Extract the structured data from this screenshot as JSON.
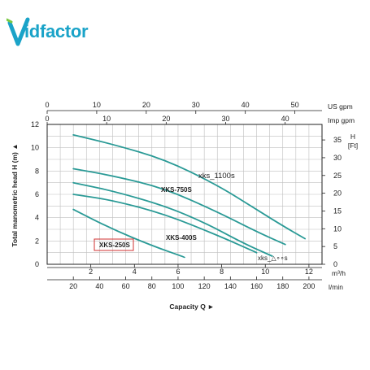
{
  "logo": {
    "text": "Vidfactor",
    "letters": "idfactor",
    "color": "#1aa3c8"
  },
  "chart_data": {
    "type": "line",
    "ylabel": "Total manometric head H (m) ▲",
    "xlabel": "Capacity Q ►",
    "ylim": [
      0,
      12
    ],
    "xlim_lmin": [
      0,
      210
    ],
    "grid": true,
    "curve_color": "#2a9a96",
    "axes": {
      "left_head_m": [
        "0",
        "2",
        "4",
        "6",
        "8",
        "10",
        "12"
      ],
      "right_head_ft": {
        "title": "H",
        "unit": "[Ft]",
        "ticks": [
          "0",
          "5",
          "10",
          "15",
          "20",
          "25",
          "30",
          "35"
        ]
      },
      "bottom_m3h": {
        "unit": "m³/h",
        "ticks": [
          "2",
          "4",
          "6",
          "8",
          "10",
          "12"
        ]
      },
      "bottom_lmin": {
        "unit": "l/min",
        "ticks": [
          "20",
          "40",
          "60",
          "80",
          "100",
          "120",
          "140",
          "160",
          "180",
          "200"
        ]
      },
      "top_us_gpm": {
        "unit": "US gpm",
        "ticks": [
          "0",
          "10",
          "20",
          "30",
          "40",
          "50"
        ]
      },
      "top_imp_gpm": {
        "unit": "Imp gpm",
        "ticks": [
          "0",
          "10",
          "20",
          "30",
          "40"
        ]
      }
    },
    "series": [
      {
        "name": "xks_1100s",
        "x": [
          20,
          50,
          90,
          130,
          160,
          180,
          197
        ],
        "y": [
          11.1,
          10.3,
          9.0,
          6.8,
          4.7,
          3.3,
          2.2
        ]
      },
      {
        "name": "XKS-750S",
        "x": [
          20,
          50,
          90,
          130,
          160,
          182
        ],
        "y": [
          8.2,
          7.6,
          6.5,
          4.5,
          2.8,
          1.7
        ]
      },
      {
        "name": "XKS-400S",
        "x": [
          20,
          50,
          90,
          120,
          150,
          172
        ],
        "y": [
          7.0,
          6.3,
          5.0,
          3.6,
          1.8,
          0.7
        ]
      },
      {
        "name": "xks_",
        "x": [
          20,
          50,
          90,
          130,
          160
        ],
        "y": [
          6.0,
          5.5,
          4.3,
          2.5,
          1.0
        ]
      },
      {
        "name": "XKS-250S",
        "x": [
          20,
          50,
          80,
          105
        ],
        "y": [
          4.7,
          3.0,
          1.6,
          0.6
        ]
      }
    ]
  }
}
